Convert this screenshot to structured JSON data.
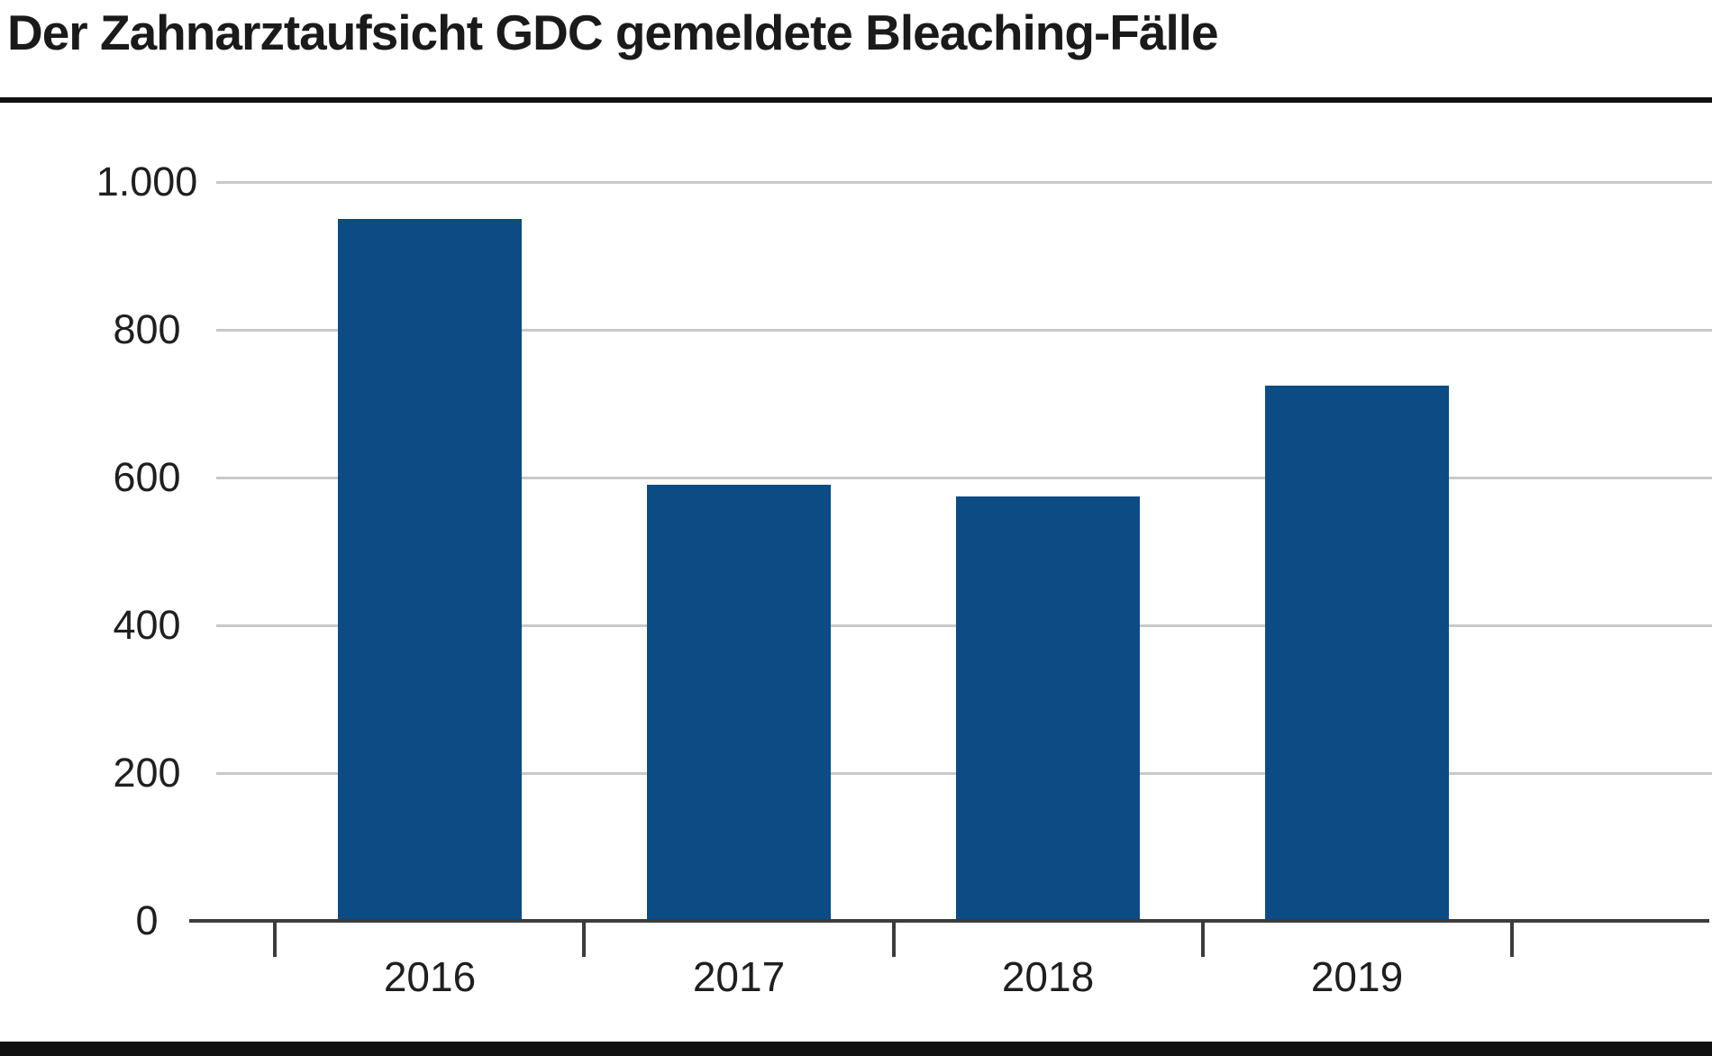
{
  "header": {
    "title": "Der Zahnarztaufsicht GDC gemeldete Bleaching-Fälle"
  },
  "chart_data": {
    "type": "bar",
    "title": "Der Zahnarztaufsicht GDC gemeldete Bleaching-Fälle",
    "categories": [
      "2016",
      "2017",
      "2018",
      "2019"
    ],
    "values": [
      950,
      590,
      575,
      725
    ],
    "xlabel": "",
    "ylabel": "",
    "ylim": [
      0,
      1000
    ],
    "ytick_interval": 200,
    "ytick_labels": [
      "0",
      "200",
      "400",
      "600",
      "800",
      "1.000"
    ],
    "grid": true,
    "legend": "none",
    "colors": {
      "bar": "#0d4b85",
      "gridline": "#c9c9c9",
      "axis": "#3c3c3c",
      "rule": "#111111",
      "text": "#1f1f1f",
      "background": "#ffffff"
    }
  }
}
